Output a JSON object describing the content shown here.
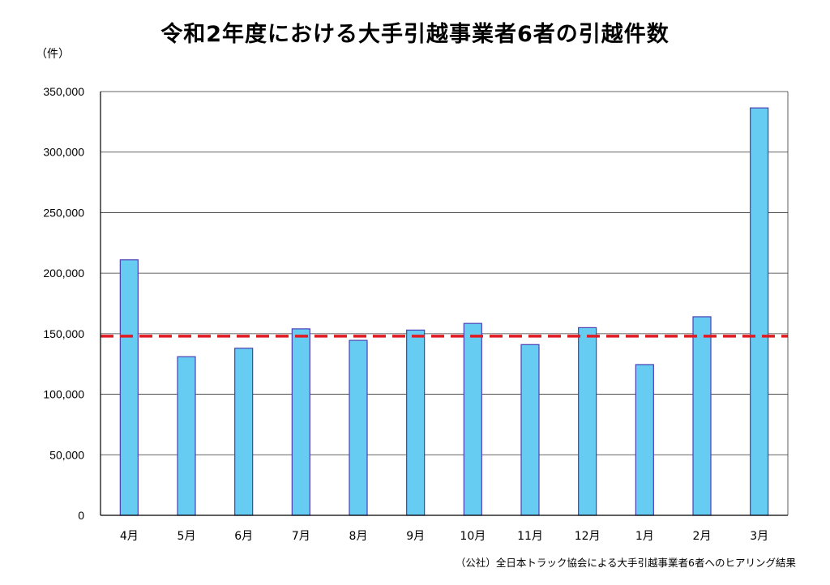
{
  "title": "令和2年度における大手引越事業者6者の引越件数",
  "y_unit": "（件）",
  "source_note": "（公社）全日本トラック協会による大手引越事業者6者へのヒアリング結果",
  "chart_data": {
    "type": "bar",
    "categories": [
      "4月",
      "5月",
      "6月",
      "7月",
      "8月",
      "9月",
      "10月",
      "11月",
      "12月",
      "1月",
      "2月",
      "3月"
    ],
    "values": [
      211000,
      131000,
      138000,
      154000,
      144500,
      153000,
      158500,
      141000,
      155000,
      124500,
      164000,
      336500
    ],
    "reference_line": {
      "value": 148000,
      "style": "dashed",
      "color": "#e11b22"
    },
    "ylim": [
      0,
      350000
    ],
    "yticks": [
      0,
      50000,
      100000,
      150000,
      200000,
      250000,
      300000,
      350000
    ],
    "ytick_labels": [
      "0",
      "50,000",
      "100,000",
      "150,000",
      "200,000",
      "250,000",
      "300,000",
      "350,000"
    ],
    "grid": true,
    "bar_color": "#66ccf2",
    "bar_edge_color": "#4b3fb3"
  }
}
